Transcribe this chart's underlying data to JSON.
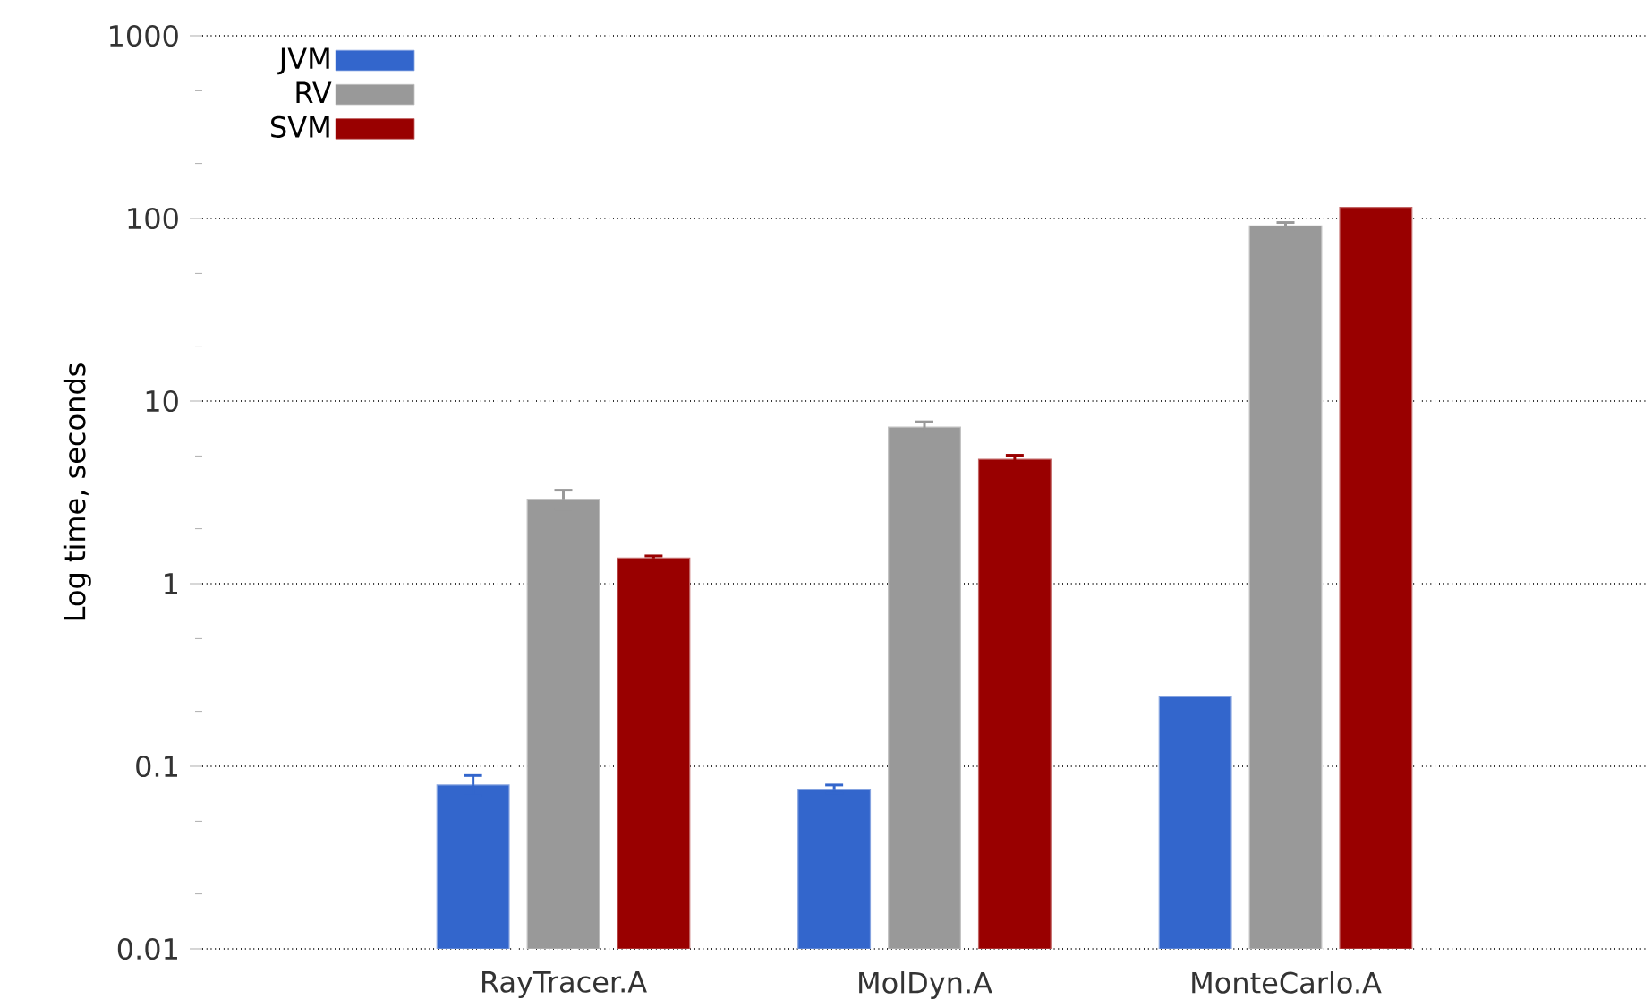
{
  "chart_data": {
    "type": "bar",
    "ylabel": "Log time, seconds",
    "categories": [
      "RayTracer.A",
      "MolDyn.A",
      "MonteCarlo.A"
    ],
    "series": [
      {
        "name": "JVM",
        "color": "#3366cc",
        "values": [
          0.079,
          0.075,
          0.24
        ],
        "errors": [
          0.01,
          0.004,
          null
        ]
      },
      {
        "name": "RV",
        "color": "#999999",
        "values": [
          2.9,
          7.2,
          91
        ],
        "errors": [
          0.35,
          0.5,
          4
        ]
      },
      {
        "name": "SVM",
        "color": "#990000",
        "values": [
          1.38,
          4.8,
          115
        ],
        "errors": [
          0.04,
          0.25,
          null
        ]
      }
    ],
    "log": true,
    "ylim": [
      0.01,
      1000
    ],
    "yticks": [
      0.01,
      {
        "value": 0.02,
        "label": null
      },
      {
        "value": 0.05,
        "label": null
      },
      0.1,
      {
        "value": 0.2,
        "label": null
      },
      {
        "value": 0.5,
        "label": null
      },
      1,
      {
        "value": 2,
        "label": null
      },
      {
        "value": 5,
        "label": null
      },
      10,
      {
        "value": 20,
        "label": null
      },
      {
        "value": 50,
        "label": null
      },
      100,
      {
        "value": 200,
        "label": null
      },
      {
        "value": 500,
        "label": null
      },
      1000
    ],
    "grid": "y",
    "legend": "top left"
  }
}
